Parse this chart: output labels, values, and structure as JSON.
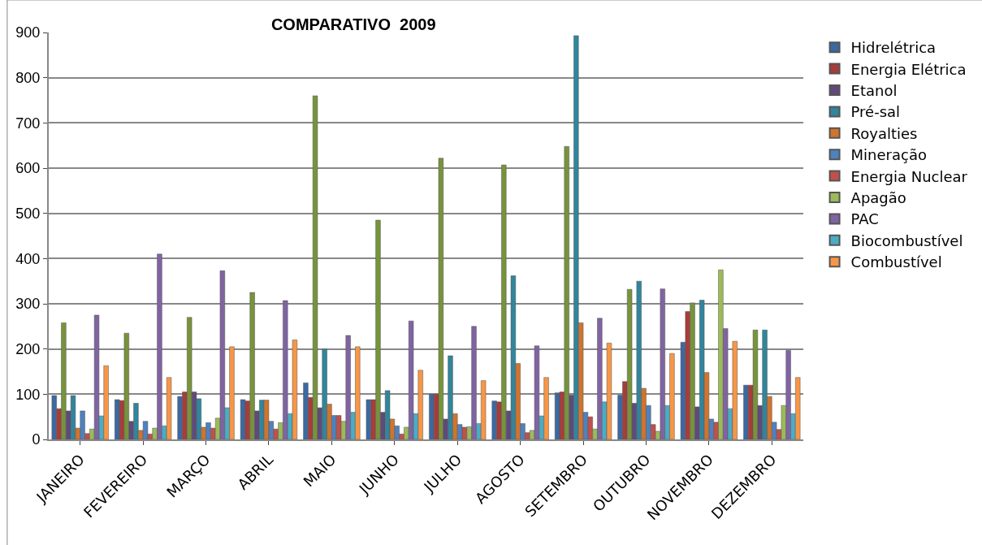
{
  "chart_data": {
    "type": "bar",
    "title": "COMPARATIVO  2009",
    "categories": [
      "JANEIRO",
      "FEVEREIRO",
      "MARÇO",
      "ABRIL",
      "MAIO",
      "JUNHO",
      "JULHO",
      "AGOSTO",
      "SETEMBRO",
      "OUTUBRO",
      "NOVEMBRO",
      "DEZEMBRO"
    ],
    "series": [
      {
        "name": "Hidrelétrica",
        "color": "#3c69a0",
        "values": [
          97,
          88,
          95,
          88,
          125,
          88,
          100,
          85,
          103,
          98,
          215,
          120
        ]
      },
      {
        "name": "Energia Elétrica",
        "color": "#a83c3a",
        "values": [
          68,
          86,
          105,
          85,
          93,
          88,
          100,
          83,
          105,
          128,
          283,
          120
        ]
      },
      {
        "color": "#77933c",
        "values": [
          258,
          235,
          270,
          325,
          760,
          485,
          622,
          607,
          648,
          332,
          302,
          242
        ]
      },
      {
        "name": "Etanol",
        "color": "#604a7b",
        "values": [
          63,
          40,
          105,
          63,
          70,
          60,
          45,
          63,
          98,
          80,
          72,
          75
        ]
      },
      {
        "name": "Pré-sal",
        "color": "#31859c",
        "values": [
          97,
          80,
          90,
          87,
          200,
          108,
          185,
          362,
          893,
          350,
          308,
          242
        ]
      },
      {
        "name": "Royalties",
        "color": "#d0742e",
        "values": [
          25,
          20,
          27,
          87,
          78,
          45,
          57,
          168,
          258,
          113,
          148,
          95
        ]
      },
      {
        "name": "Mineração",
        "color": "#4f81bd",
        "values": [
          63,
          40,
          37,
          40,
          53,
          30,
          33,
          35,
          60,
          75,
          45,
          38
        ]
      },
      {
        "name": "Energia Nuclear",
        "color": "#c0504d",
        "values": [
          13,
          12,
          25,
          23,
          53,
          12,
          27,
          15,
          50,
          33,
          38,
          22
        ]
      },
      {
        "name": "Apagão",
        "color": "#9bbb59",
        "values": [
          23,
          25,
          47,
          37,
          40,
          27,
          28,
          20,
          23,
          18,
          375,
          75
        ]
      },
      {
        "name": "PAC",
        "color": "#8064a2",
        "values": [
          275,
          410,
          373,
          307,
          230,
          262,
          250,
          207,
          268,
          333,
          245,
          197
        ]
      },
      {
        "name": "Biocombustível",
        "color": "#4bacc6",
        "values": [
          52,
          30,
          70,
          57,
          60,
          57,
          35,
          52,
          83,
          75,
          68,
          57
        ]
      },
      {
        "name": "Combustível",
        "color": "#f79646",
        "values": [
          163,
          137,
          205,
          220,
          205,
          153,
          130,
          137,
          213,
          190,
          217,
          137
        ]
      }
    ],
    "ylim": [
      0,
      900
    ],
    "yticks": [
      0,
      100,
      200,
      300,
      400,
      500,
      600,
      700,
      800,
      900
    ],
    "grid": "y",
    "legend": "right"
  }
}
